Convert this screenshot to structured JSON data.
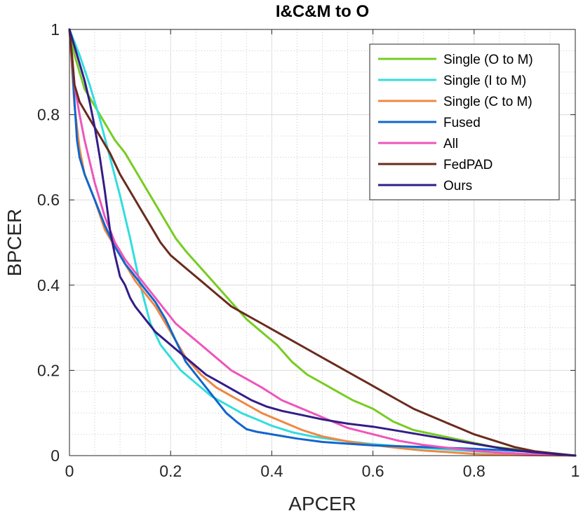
{
  "chart_data": {
    "type": "line",
    "title": "I&C&M to O",
    "xlabel": "APCER",
    "ylabel": "BPCER",
    "xlim": [
      0,
      1
    ],
    "ylim": [
      0,
      1
    ],
    "x_ticks": [
      0,
      0.2,
      0.4,
      0.6,
      0.8,
      1
    ],
    "y_ticks": [
      0,
      0.2,
      0.4,
      0.6,
      0.8,
      1
    ],
    "x_tick_labels": [
      "0",
      "0.2",
      "0.4",
      "0.6",
      "0.8",
      "1"
    ],
    "y_tick_labels": [
      "0",
      "0.2",
      "0.4",
      "0.6",
      "0.8",
      "1"
    ],
    "grid": true,
    "minor_grid": true,
    "legend_position": "top-right",
    "series": [
      {
        "name": "Single (O to M)",
        "color": "#77cc22",
        "x": [
          0,
          0.01,
          0.03,
          0.05,
          0.07,
          0.09,
          0.11,
          0.13,
          0.15,
          0.17,
          0.19,
          0.21,
          0.23,
          0.26,
          0.29,
          0.32,
          0.35,
          0.38,
          0.41,
          0.44,
          0.47,
          0.5,
          0.53,
          0.56,
          0.6,
          0.64,
          0.68,
          0.72,
          0.76,
          0.8,
          0.84,
          0.88,
          0.92,
          0.96,
          1
        ],
        "y": [
          1,
          0.94,
          0.86,
          0.82,
          0.78,
          0.74,
          0.71,
          0.67,
          0.63,
          0.59,
          0.55,
          0.51,
          0.48,
          0.44,
          0.4,
          0.36,
          0.32,
          0.29,
          0.26,
          0.22,
          0.19,
          0.17,
          0.15,
          0.13,
          0.11,
          0.08,
          0.06,
          0.05,
          0.04,
          0.03,
          0.02,
          0.015,
          0.01,
          0.005,
          0
        ]
      },
      {
        "name": "Single (I to M)",
        "color": "#33dddd",
        "x": [
          0,
          0.02,
          0.04,
          0.06,
          0.08,
          0.1,
          0.12,
          0.14,
          0.16,
          0.18,
          0.2,
          0.22,
          0.25,
          0.28,
          0.31,
          0.34,
          0.37,
          0.4,
          0.44,
          0.48,
          0.52,
          0.56,
          0.6,
          0.65,
          0.7,
          0.75,
          0.8,
          0.85,
          0.9,
          0.95,
          1
        ],
        "y": [
          1,
          0.94,
          0.87,
          0.79,
          0.7,
          0.61,
          0.51,
          0.4,
          0.31,
          0.26,
          0.23,
          0.2,
          0.17,
          0.14,
          0.12,
          0.1,
          0.085,
          0.07,
          0.055,
          0.045,
          0.038,
          0.032,
          0.027,
          0.022,
          0.018,
          0.014,
          0.01,
          0.007,
          0.004,
          0.002,
          0
        ]
      },
      {
        "name": "Single (C to M)",
        "color": "#ee8844",
        "x": [
          0,
          0.01,
          0.02,
          0.03,
          0.05,
          0.07,
          0.09,
          0.11,
          0.13,
          0.15,
          0.17,
          0.19,
          0.21,
          0.23,
          0.26,
          0.29,
          0.32,
          0.35,
          0.38,
          0.42,
          0.46,
          0.5,
          0.55,
          0.6,
          0.65,
          0.7,
          0.75,
          0.8,
          0.85,
          0.9,
          1
        ],
        "y": [
          1,
          0.82,
          0.72,
          0.66,
          0.6,
          0.53,
          0.49,
          0.45,
          0.41,
          0.38,
          0.35,
          0.31,
          0.27,
          0.23,
          0.19,
          0.16,
          0.14,
          0.12,
          0.1,
          0.08,
          0.06,
          0.045,
          0.033,
          0.025,
          0.018,
          0.012,
          0.008,
          0.004,
          0.002,
          0.001,
          0
        ]
      },
      {
        "name": "Fused",
        "color": "#1166cc",
        "x": [
          0,
          0.005,
          0.01,
          0.015,
          0.02,
          0.03,
          0.05,
          0.07,
          0.09,
          0.11,
          0.13,
          0.15,
          0.17,
          0.19,
          0.21,
          0.23,
          0.25,
          0.27,
          0.29,
          0.31,
          0.33,
          0.35,
          0.37,
          0.4,
          0.45,
          0.5,
          0.55,
          0.6,
          0.7,
          0.8,
          0.9,
          1
        ],
        "y": [
          1,
          0.93,
          0.83,
          0.74,
          0.7,
          0.66,
          0.6,
          0.54,
          0.49,
          0.45,
          0.42,
          0.39,
          0.36,
          0.32,
          0.27,
          0.22,
          0.19,
          0.16,
          0.13,
          0.1,
          0.08,
          0.062,
          0.056,
          0.05,
          0.04,
          0.032,
          0.028,
          0.024,
          0.02,
          0.016,
          0.01,
          0
        ]
      },
      {
        "name": "All",
        "color": "#ee55bb",
        "x": [
          0,
          0.01,
          0.02,
          0.03,
          0.05,
          0.07,
          0.09,
          0.11,
          0.13,
          0.15,
          0.17,
          0.19,
          0.21,
          0.23,
          0.26,
          0.29,
          0.32,
          0.35,
          0.38,
          0.42,
          0.46,
          0.5,
          0.55,
          0.6,
          0.65,
          0.7,
          0.75,
          0.8,
          0.85,
          0.9,
          1
        ],
        "y": [
          1,
          0.87,
          0.8,
          0.74,
          0.64,
          0.56,
          0.5,
          0.46,
          0.43,
          0.4,
          0.37,
          0.34,
          0.31,
          0.29,
          0.26,
          0.23,
          0.2,
          0.18,
          0.16,
          0.13,
          0.11,
          0.09,
          0.065,
          0.05,
          0.035,
          0.025,
          0.018,
          0.012,
          0.007,
          0.004,
          0
        ]
      },
      {
        "name": "FedPAD",
        "color": "#6a2b1e",
        "x": [
          0,
          0.005,
          0.01,
          0.02,
          0.04,
          0.06,
          0.08,
          0.1,
          0.12,
          0.14,
          0.16,
          0.18,
          0.2,
          0.23,
          0.26,
          0.29,
          0.32,
          0.35,
          0.38,
          0.41,
          0.44,
          0.47,
          0.5,
          0.53,
          0.56,
          0.59,
          0.62,
          0.65,
          0.68,
          0.71,
          0.74,
          0.77,
          0.8,
          0.84,
          0.88,
          0.92,
          0.96,
          1
        ],
        "y": [
          1,
          0.94,
          0.87,
          0.83,
          0.79,
          0.75,
          0.71,
          0.66,
          0.62,
          0.58,
          0.54,
          0.5,
          0.47,
          0.44,
          0.41,
          0.38,
          0.35,
          0.33,
          0.31,
          0.29,
          0.27,
          0.25,
          0.23,
          0.21,
          0.19,
          0.17,
          0.15,
          0.13,
          0.11,
          0.095,
          0.08,
          0.065,
          0.05,
          0.035,
          0.02,
          0.01,
          0.005,
          0
        ]
      },
      {
        "name": "Ours",
        "color": "#331c88",
        "x": [
          0,
          0.01,
          0.02,
          0.03,
          0.04,
          0.05,
          0.06,
          0.07,
          0.08,
          0.09,
          0.1,
          0.11,
          0.12,
          0.13,
          0.15,
          0.17,
          0.19,
          0.21,
          0.24,
          0.27,
          0.3,
          0.33,
          0.36,
          0.39,
          0.42,
          0.46,
          0.5,
          0.55,
          0.6,
          0.65,
          0.7,
          0.75,
          0.8,
          0.85,
          0.9,
          0.95,
          1
        ],
        "y": [
          1,
          0.96,
          0.92,
          0.88,
          0.83,
          0.77,
          0.7,
          0.62,
          0.53,
          0.47,
          0.42,
          0.4,
          0.37,
          0.35,
          0.32,
          0.29,
          0.27,
          0.25,
          0.22,
          0.19,
          0.17,
          0.15,
          0.13,
          0.115,
          0.105,
          0.095,
          0.085,
          0.075,
          0.068,
          0.058,
          0.048,
          0.038,
          0.028,
          0.018,
          0.01,
          0.005,
          0
        ]
      }
    ]
  }
}
